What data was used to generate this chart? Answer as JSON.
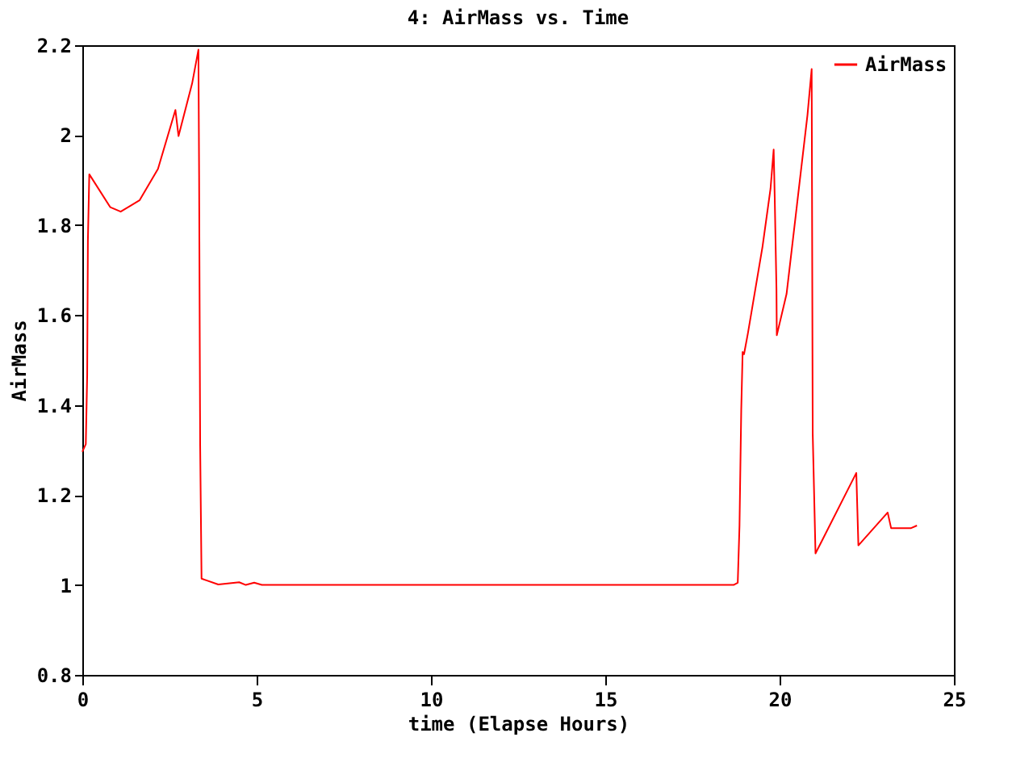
{
  "chart_data": {
    "type": "line",
    "title": "4: AirMass vs. Time",
    "xlabel": "time (Elapse Hours)",
    "ylabel": "AirMass",
    "xlim": [
      0,
      25
    ],
    "xticks": [
      0,
      5,
      10,
      15,
      20,
      25
    ],
    "ylim": [
      0.8,
      2.2
    ],
    "yticks": [
      0.8,
      1,
      1.2,
      1.4,
      1.6,
      1.8,
      2,
      2.2
    ],
    "grid": false,
    "legend": "top right",
    "series": [
      {
        "name": "AirMass",
        "color": "#ff0000",
        "x": [
          0,
          0.1,
          0.14,
          0.16,
          0.2,
          0.8,
          1.1,
          1.64,
          2.17,
          2.67,
          2.76,
          3.15,
          3.33,
          3.35,
          3.38,
          3.42,
          3.9,
          4.5,
          4.69,
          4.93,
          5.15,
          18.68,
          18.8,
          18.85,
          18.9,
          18.94,
          18.98,
          19.09,
          19.51,
          19.74,
          19.83,
          19.86,
          19.91,
          19.92,
          20.2,
          20.5,
          20.8,
          20.92,
          20.93,
          20.95,
          21.03,
          22.2,
          22.23,
          22.26,
          23.1,
          23.2,
          23.76,
          23.94
        ],
        "values": [
          1.296,
          1.313,
          1.467,
          1.765,
          1.913,
          1.84,
          1.83,
          1.855,
          1.925,
          2.056,
          1.998,
          2.115,
          2.19,
          1.91,
          1.31,
          1.014,
          1.001,
          1.006,
          1.0,
          1.005,
          1.0,
          1.0,
          1.005,
          1.132,
          1.389,
          1.518,
          1.513,
          1.559,
          1.752,
          1.881,
          1.968,
          1.863,
          1.659,
          1.555,
          1.647,
          1.846,
          2.045,
          2.147,
          1.881,
          1.337,
          1.07,
          1.249,
          1.169,
          1.088,
          1.161,
          1.126,
          1.126,
          1.132
        ]
      }
    ]
  }
}
